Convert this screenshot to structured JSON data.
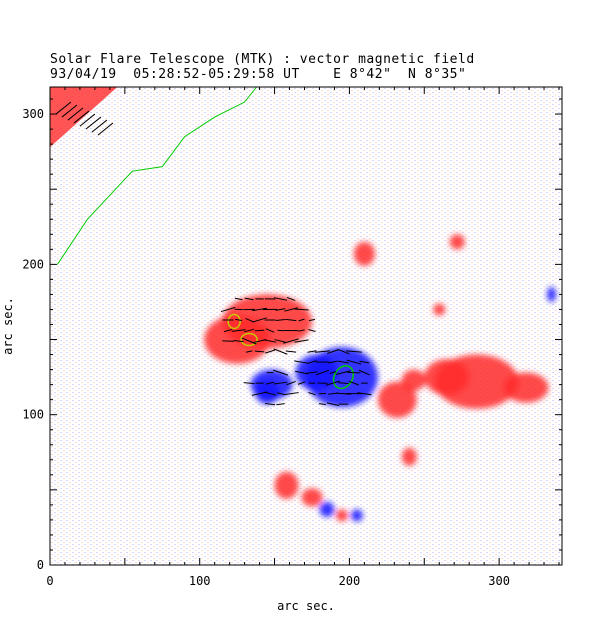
{
  "header": {
    "title": "Solar Flare Telescope (MTK) : vector magnetic field",
    "subtitle": "93/04/19  05:28:52-05:29:58 UT    E 8°42\"  N 8°35\""
  },
  "chart_data": {
    "type": "heatmap",
    "xlabel": "arc sec.",
    "ylabel": "arc sec.",
    "xlim": [
      0,
      342
    ],
    "ylim": [
      0,
      318
    ],
    "xticks": [
      "0",
      "100",
      "200",
      "300"
    ],
    "yticks": [
      "0",
      "100",
      "200",
      "300"
    ],
    "grid": false,
    "colors": {
      "positive": "#ff2a2a",
      "negative": "#1a1aff",
      "contour_green": "#00cc00",
      "contour_yellow": "#c8c800",
      "vector": "#000000"
    },
    "positive_regions": [
      {
        "x": 145,
        "y": 162,
        "rx": 30,
        "ry": 18
      },
      {
        "x": 125,
        "y": 150,
        "rx": 22,
        "ry": 16
      },
      {
        "x": 285,
        "y": 122,
        "rx": 28,
        "ry": 18
      },
      {
        "x": 265,
        "y": 125,
        "rx": 15,
        "ry": 12
      },
      {
        "x": 318,
        "y": 118,
        "rx": 15,
        "ry": 10
      },
      {
        "x": 232,
        "y": 110,
        "rx": 13,
        "ry": 12
      },
      {
        "x": 243,
        "y": 123,
        "rx": 8,
        "ry": 7
      },
      {
        "x": 158,
        "y": 53,
        "rx": 8,
        "ry": 9
      },
      {
        "x": 175,
        "y": 45,
        "rx": 7,
        "ry": 6
      },
      {
        "x": 210,
        "y": 207,
        "rx": 7,
        "ry": 8
      },
      {
        "x": 272,
        "y": 215,
        "rx": 5,
        "ry": 5
      },
      {
        "x": 240,
        "y": 72,
        "rx": 5,
        "ry": 6
      },
      {
        "x": 195,
        "y": 33,
        "rx": 4,
        "ry": 4
      },
      {
        "x": 260,
        "y": 170,
        "rx": 4,
        "ry": 4
      }
    ],
    "negative_regions": [
      {
        "x": 195,
        "y": 125,
        "rx": 24,
        "ry": 20
      },
      {
        "x": 178,
        "y": 128,
        "rx": 14,
        "ry": 12
      },
      {
        "x": 148,
        "y": 120,
        "rx": 14,
        "ry": 10
      },
      {
        "x": 145,
        "y": 115,
        "rx": 8,
        "ry": 8
      },
      {
        "x": 185,
        "y": 37,
        "rx": 5,
        "ry": 5
      },
      {
        "x": 205,
        "y": 33,
        "rx": 4,
        "ry": 4
      },
      {
        "x": 335,
        "y": 180,
        "rx": 3,
        "ry": 5
      }
    ],
    "neutral_line": [
      [
        5,
        200
      ],
      [
        25,
        230
      ],
      [
        55,
        262
      ],
      [
        75,
        265
      ],
      [
        90,
        285
      ],
      [
        110,
        298
      ],
      [
        130,
        308
      ],
      [
        138,
        318
      ]
    ]
  }
}
